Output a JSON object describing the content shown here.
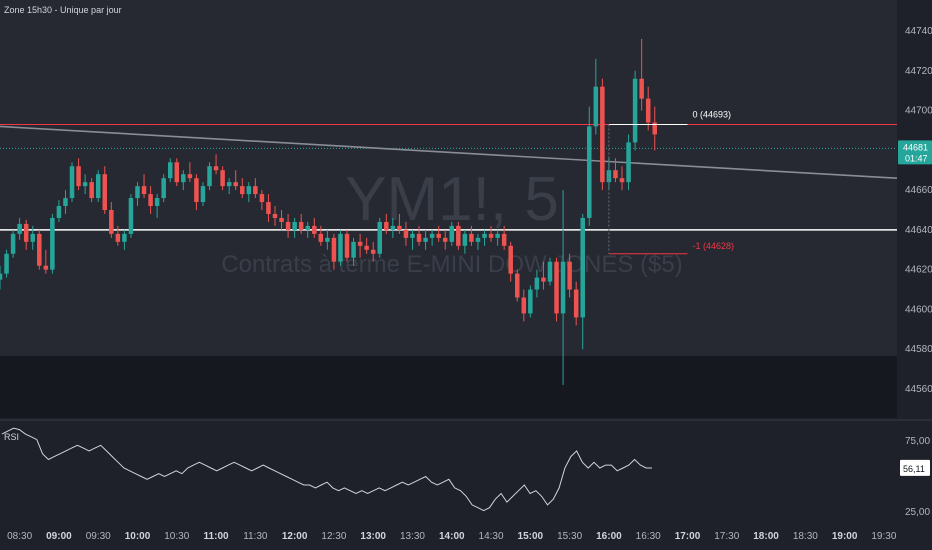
{
  "indicator_title": "Zone 15h30 - Unique par jour",
  "watermark": {
    "symbol": "YM1!, 5",
    "description": "Contrats à terme E-MINI DOW JONES ($5)"
  },
  "rsi_label": "RSI",
  "colors": {
    "background": "#1e2129",
    "lower_band": "#161820",
    "up": "#26a69a",
    "down": "#ef5350",
    "zone_red": "#f23645",
    "line_white": "#ffffff",
    "trend_gray": "#8a8d96",
    "last_price": "#26a69a",
    "rsi_line": "#d1d4dc"
  },
  "chart_data": [
    {
      "type": "candlestick",
      "interval_minutes": 5,
      "y_ticks": [
        44560,
        44580,
        44600,
        44620,
        44640,
        44660,
        44680,
        44700,
        44720,
        44740
      ],
      "ylim": [
        44550,
        44750
      ],
      "x_tick_labels": [
        "08:30",
        "09:00",
        "09:30",
        "10:00",
        "10:30",
        "11:00",
        "11:30",
        "12:00",
        "12:30",
        "13:00",
        "13:30",
        "14:00",
        "14:30",
        "15:00",
        "15:30",
        "16:00",
        "16:30",
        "17:00",
        "17:30",
        "18:00",
        "18:30",
        "19:00",
        "19:30"
      ],
      "x_tick_bold": [
        "09:00",
        "10:00",
        "11:00",
        "12:00",
        "13:00",
        "14:00",
        "15:00",
        "16:00",
        "17:00",
        "18:00",
        "19:00"
      ],
      "time_start": "08:15",
      "time_end": "19:40",
      "candles": [
        [
          "08:15",
          44615,
          44622,
          44610,
          44618
        ],
        [
          "08:20",
          44618,
          44630,
          44616,
          44628
        ],
        [
          "08:25",
          44628,
          44640,
          44626,
          44638
        ],
        [
          "08:30",
          44638,
          44646,
          44635,
          44643
        ],
        [
          "08:35",
          44643,
          44645,
          44630,
          44634
        ],
        [
          "08:40",
          44634,
          44642,
          44630,
          44638
        ],
        [
          "08:45",
          44638,
          44640,
          44620,
          44622
        ],
        [
          "08:50",
          44622,
          44630,
          44618,
          44620
        ],
        [
          "08:55",
          44620,
          44648,
          44618,
          44646
        ],
        [
          "09:00",
          44646,
          44655,
          44644,
          44652
        ],
        [
          "09:05",
          44652,
          44660,
          44648,
          44656
        ],
        [
          "09:10",
          44656,
          44674,
          44654,
          44672
        ],
        [
          "09:15",
          44672,
          44676,
          44660,
          44662
        ],
        [
          "09:20",
          44662,
          44668,
          44658,
          44664
        ],
        [
          "09:25",
          44664,
          44666,
          44654,
          44656
        ],
        [
          "09:30",
          44656,
          44670,
          44654,
          44668
        ],
        [
          "09:35",
          44668,
          44672,
          44648,
          44650
        ],
        [
          "09:40",
          44650,
          44654,
          44636,
          44638
        ],
        [
          "09:45",
          44638,
          44642,
          44632,
          44634
        ],
        [
          "09:50",
          44634,
          44640,
          44630,
          44638
        ],
        [
          "09:55",
          44638,
          44658,
          44636,
          44656
        ],
        [
          "10:00",
          44656,
          44664,
          44652,
          44662
        ],
        [
          "10:05",
          44662,
          44668,
          44656,
          44658
        ],
        [
          "10:10",
          44658,
          44662,
          44648,
          44652
        ],
        [
          "10:15",
          44652,
          44658,
          44646,
          44656
        ],
        [
          "10:20",
          44656,
          44668,
          44654,
          44666
        ],
        [
          "10:25",
          44666,
          44676,
          44664,
          44674
        ],
        [
          "10:30",
          44674,
          44676,
          44662,
          44664
        ],
        [
          "10:35",
          44664,
          44670,
          44660,
          44668
        ],
        [
          "10:40",
          44668,
          44674,
          44664,
          44666
        ],
        [
          "10:45",
          44666,
          44668,
          44650,
          44654
        ],
        [
          "10:50",
          44654,
          44664,
          44652,
          44662
        ],
        [
          "10:55",
          44662,
          44674,
          44660,
          44672
        ],
        [
          "11:00",
          44672,
          44678,
          44668,
          44670
        ],
        [
          "11:05",
          44670,
          44672,
          44660,
          44662
        ],
        [
          "11:10",
          44662,
          44666,
          44658,
          44664
        ],
        [
          "11:15",
          44664,
          44670,
          44660,
          44662
        ],
        [
          "11:20",
          44662,
          44666,
          44656,
          44658
        ],
        [
          "11:25",
          44658,
          44664,
          44654,
          44662
        ],
        [
          "11:30",
          44662,
          44666,
          44656,
          44658
        ],
        [
          "11:35",
          44658,
          44660,
          44650,
          44654
        ],
        [
          "11:40",
          44654,
          44658,
          44644,
          44648
        ],
        [
          "11:45",
          44648,
          44652,
          44642,
          44646
        ],
        [
          "11:50",
          44646,
          44650,
          44640,
          44644
        ],
        [
          "11:55",
          44644,
          44648,
          44636,
          44640
        ],
        [
          "12:00",
          44640,
          44646,
          44636,
          44644
        ],
        [
          "12:05",
          44644,
          44648,
          44638,
          44640
        ],
        [
          "12:10",
          44640,
          44644,
          44636,
          44642
        ],
        [
          "12:15",
          44642,
          44646,
          44636,
          44638
        ],
        [
          "12:20",
          44638,
          44642,
          44632,
          44634
        ],
        [
          "12:25",
          44634,
          44640,
          44630,
          44636
        ],
        [
          "12:30",
          44636,
          44638,
          44620,
          44624
        ],
        [
          "12:35",
          44624,
          44640,
          44622,
          44638
        ],
        [
          "12:40",
          44638,
          44640,
          44624,
          44626
        ],
        [
          "12:45",
          44626,
          44636,
          44622,
          44634
        ],
        [
          "12:50",
          44634,
          44638,
          44626,
          44632
        ],
        [
          "12:55",
          44632,
          44636,
          44628,
          44630
        ],
        [
          "13:00",
          44630,
          44634,
          44624,
          44628
        ],
        [
          "13:05",
          44628,
          44646,
          44626,
          44644
        ],
        [
          "13:10",
          44644,
          44648,
          44638,
          44640
        ],
        [
          "13:15",
          44640,
          44646,
          44636,
          44642
        ],
        [
          "13:20",
          44642,
          44648,
          44638,
          44640
        ],
        [
          "13:25",
          44640,
          44644,
          44632,
          44636
        ],
        [
          "13:30",
          44636,
          44640,
          44630,
          44638
        ],
        [
          "13:35",
          44638,
          44642,
          44632,
          44634
        ],
        [
          "13:40",
          44634,
          44640,
          44630,
          44636
        ],
        [
          "13:45",
          44636,
          44640,
          44632,
          44638
        ],
        [
          "13:50",
          44638,
          44642,
          44634,
          44636
        ],
        [
          "13:55",
          44636,
          44640,
          44630,
          44634
        ],
        [
          "14:00",
          44634,
          44644,
          44632,
          44642
        ],
        [
          "14:05",
          44642,
          44644,
          44630,
          44632
        ],
        [
          "14:10",
          44632,
          44640,
          44628,
          44638
        ],
        [
          "14:15",
          44638,
          44642,
          44632,
          44634
        ],
        [
          "14:20",
          44634,
          44638,
          44630,
          44636
        ],
        [
          "14:25",
          44636,
          44640,
          44632,
          44638
        ],
        [
          "14:30",
          44638,
          44642,
          44634,
          44636
        ],
        [
          "14:35",
          44636,
          44640,
          44632,
          44638
        ],
        [
          "14:40",
          44638,
          44642,
          44630,
          44632
        ],
        [
          "14:45",
          44632,
          44634,
          44614,
          44618
        ],
        [
          "14:50",
          44618,
          44620,
          44604,
          44606
        ],
        [
          "14:55",
          44606,
          44610,
          44594,
          44598
        ],
        [
          "15:00",
          44598,
          44612,
          44596,
          44610
        ],
        [
          "15:05",
          44610,
          44620,
          44606,
          44616
        ],
        [
          "15:10",
          44616,
          44624,
          44610,
          44614
        ],
        [
          "15:15",
          44614,
          44626,
          44612,
          44624
        ],
        [
          "15:20",
          44624,
          44626,
          44594,
          44598
        ],
        [
          "15:25",
          44598,
          44660,
          44562,
          44624
        ],
        [
          "15:30",
          44624,
          44628,
          44606,
          44610
        ],
        [
          "15:35",
          44610,
          44614,
          44592,
          44596
        ],
        [
          "15:40",
          44596,
          44648,
          44580,
          44646
        ],
        [
          "15:45",
          44646,
          44702,
          44642,
          44692
        ],
        [
          "15:50",
          44692,
          44726,
          44688,
          44712
        ],
        [
          "15:55",
          44712,
          44716,
          44660,
          44664
        ],
        [
          "16:00",
          44664,
          44676,
          44660,
          44670
        ],
        [
          "16:05",
          44670,
          44676,
          44664,
          44666
        ],
        [
          "16:10",
          44666,
          44672,
          44660,
          44664
        ],
        [
          "16:15",
          44664,
          44688,
          44660,
          44684
        ],
        [
          "16:20",
          44684,
          44720,
          44680,
          44716
        ],
        [
          "16:25",
          44716,
          44736,
          44700,
          44706
        ],
        [
          "16:30",
          44706,
          44712,
          44690,
          44694
        ],
        [
          "16:35",
          44694,
          44702,
          44680,
          44688
        ]
      ],
      "horizontal_levels": [
        {
          "price": 44693,
          "color_key": "zone_red",
          "width": 1
        },
        {
          "price": 44640,
          "color_key": "line_white",
          "width": 1.5
        }
      ],
      "fib_levels": [
        {
          "label": "0 (44693)",
          "price": 44693,
          "color_key": "line_white"
        },
        {
          "label": "-1 (44628)",
          "price": 44628,
          "color_key": "zone_red"
        }
      ],
      "trendline": {
        "from": [
          "08:15",
          44692
        ],
        "to": [
          "19:40",
          44666
        ]
      },
      "last_price": {
        "value": "44681",
        "countdown": "01:47"
      }
    },
    {
      "type": "line",
      "name": "RSI",
      "y_ticks": [
        "75,00",
        "25,00"
      ],
      "ylim": [
        10,
        90
      ],
      "current_value": "56,11",
      "values": [
        80,
        82,
        84,
        83,
        80,
        78,
        76,
        66,
        62,
        64,
        66,
        68,
        70,
        72,
        70,
        68,
        70,
        72,
        68,
        64,
        60,
        56,
        54,
        52,
        50,
        48,
        50,
        52,
        50,
        52,
        54,
        52,
        56,
        58,
        60,
        58,
        56,
        54,
        56,
        58,
        60,
        58,
        56,
        54,
        56,
        58,
        56,
        54,
        52,
        50,
        48,
        46,
        44,
        44,
        42,
        44,
        46,
        42,
        40,
        42,
        40,
        38,
        40,
        38,
        40,
        42,
        40,
        42,
        44,
        46,
        44,
        46,
        48,
        50,
        46,
        44,
        46,
        48,
        42,
        40,
        36,
        30,
        28,
        26,
        28,
        34,
        38,
        32,
        36,
        40,
        44,
        38,
        40,
        36,
        30,
        34,
        42,
        56,
        64,
        68,
        60,
        56,
        60,
        56,
        58,
        58,
        54,
        56,
        58,
        62,
        58,
        56,
        56
      ]
    }
  ]
}
